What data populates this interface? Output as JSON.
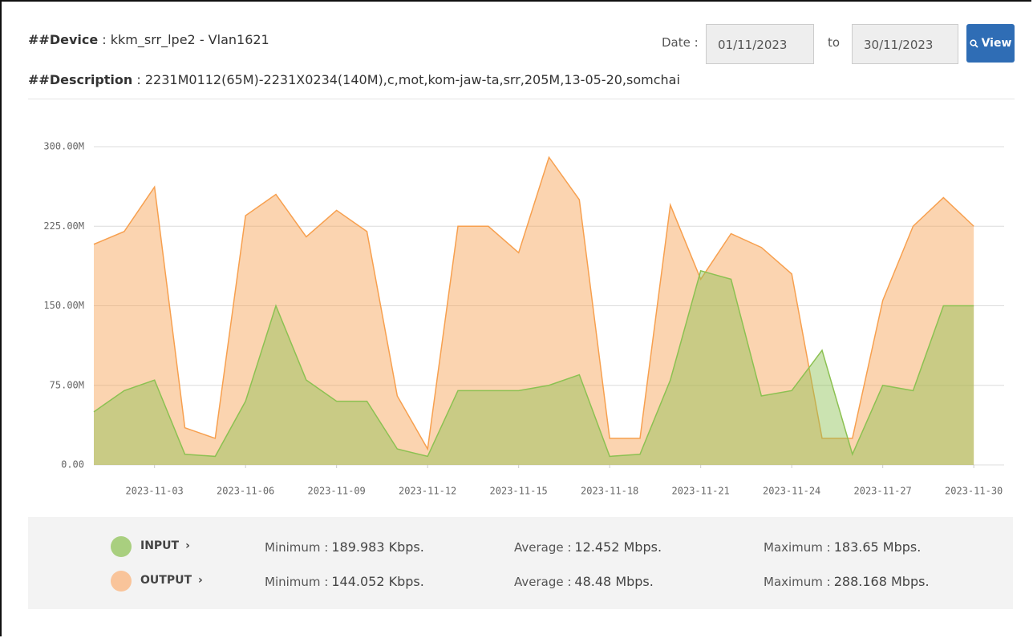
{
  "header": {
    "device_label": "##Device",
    "device": ": kkm_srr_lpe2 - Vlan1621",
    "description_label": "##Description",
    "description": ": 2231M0112(65M)-2231X0234(140M),c,mot,kom-jaw-ta,srr,205M,13-05-20,somchai",
    "date_label": "Date :",
    "date_from": "01/11/2023",
    "to_label": "to",
    "date_to": "30/11/2023",
    "view_button": "View"
  },
  "chart_data": {
    "type": "area",
    "x": [
      "2023-11-01",
      "2023-11-02",
      "2023-11-03",
      "2023-11-04",
      "2023-11-05",
      "2023-11-06",
      "2023-11-07",
      "2023-11-08",
      "2023-11-09",
      "2023-11-10",
      "2023-11-11",
      "2023-11-12",
      "2023-11-13",
      "2023-11-14",
      "2023-11-15",
      "2023-11-16",
      "2023-11-17",
      "2023-11-18",
      "2023-11-19",
      "2023-11-20",
      "2023-11-21",
      "2023-11-22",
      "2023-11-23",
      "2023-11-24",
      "2023-11-25",
      "2023-11-26",
      "2023-11-27",
      "2023-11-28",
      "2023-11-29",
      "2023-11-30"
    ],
    "series": [
      {
        "name": "INPUT",
        "color": "#8cc152",
        "legend_color": "#a9cf7f",
        "values": [
          50,
          70,
          80,
          10,
          8,
          60,
          150,
          80,
          60,
          60,
          15,
          8,
          70,
          70,
          70,
          75,
          85,
          8,
          10,
          80,
          183,
          175,
          65,
          70,
          108,
          10,
          75,
          70,
          150,
          150
        ]
      },
      {
        "name": "OUTPUT",
        "color": "#f7a04f",
        "legend_color": "#f9c49a",
        "values": [
          208,
          220,
          262,
          35,
          25,
          235,
          255,
          215,
          240,
          220,
          65,
          15,
          225,
          225,
          200,
          290,
          250,
          25,
          25,
          245,
          175,
          218,
          205,
          180,
          25,
          25,
          155,
          225,
          252,
          225
        ]
      }
    ],
    "xlim": [
      "2023-11-01",
      "2023-12-01"
    ],
    "xticks": [
      "2023-11-03",
      "2023-11-06",
      "2023-11-09",
      "2023-11-12",
      "2023-11-15",
      "2023-11-18",
      "2023-11-21",
      "2023-11-24",
      "2023-11-27",
      "2023-11-30"
    ],
    "ylim": [
      0,
      300
    ],
    "yticks": [
      {
        "value": 0,
        "label": "0.00"
      },
      {
        "value": 75,
        "label": "75.00M"
      },
      {
        "value": 150,
        "label": "150.00M"
      },
      {
        "value": 225,
        "label": "225.00M"
      },
      {
        "value": 300,
        "label": "300.00M"
      }
    ],
    "grid": true
  },
  "stats": [
    {
      "min_label": "Minimum :",
      "min": "189.983 Kbps.",
      "avg_label": "Average :",
      "avg": "12.452 Mbps.",
      "max_label": "Maximum :",
      "max": "183.65 Mbps."
    },
    {
      "min_label": "Minimum :",
      "min": "144.052 Kbps.",
      "avg_label": "Average :",
      "avg": "48.48 Mbps.",
      "max_label": "Maximum :",
      "max": "288.168 Mbps."
    }
  ]
}
